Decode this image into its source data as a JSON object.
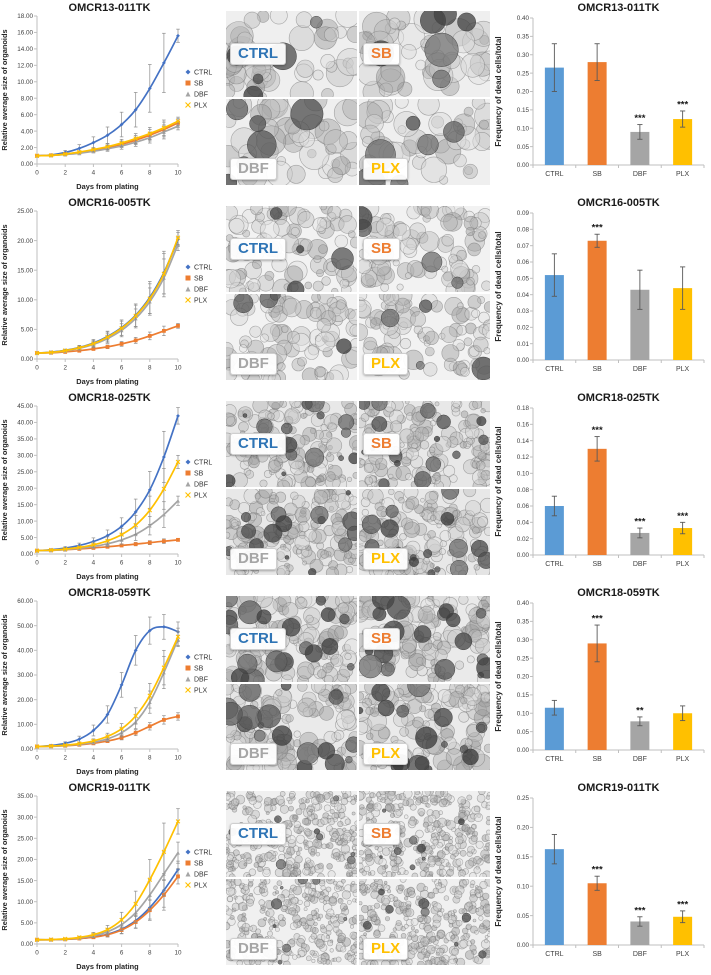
{
  "series_names": [
    "CTRL",
    "SB",
    "DBF",
    "PLX"
  ],
  "line_colors": [
    "#4472C4",
    "#ED7D31",
    "#A5A5A5",
    "#FFC000"
  ],
  "bar_colors": [
    "#5B9BD5",
    "#ED7D31",
    "#A5A5A5",
    "#FFC000"
  ],
  "label_colors": [
    "#2E74B5",
    "#ED7D31",
    "#A6A6A6",
    "#FFC000"
  ],
  "markers": [
    "diamond",
    "square",
    "triangle",
    "x"
  ],
  "chart_data": [
    {
      "sample": "OMCR13-011TK",
      "line": {
        "type": "line",
        "title": "OMCR13-011TK",
        "xlabel": "Days from plating",
        "ylabel": "Relative average size of organoids",
        "xlim": [
          0,
          10
        ],
        "xticks": [
          0,
          2,
          4,
          6,
          8,
          10
        ],
        "ylim": [
          0,
          18
        ],
        "ystep": 2,
        "x": [
          0,
          1,
          2,
          3,
          4,
          5,
          6,
          7,
          8,
          9,
          10
        ],
        "series": [
          {
            "name": "CTRL",
            "values": [
              1,
              1.1,
              1.4,
              1.9,
              2.6,
              3.5,
              4.8,
              6.6,
              9.2,
              12.3,
              15.6
            ],
            "err": [
              0,
              0.1,
              0.25,
              0.45,
              0.7,
              1.0,
              1.5,
              2.1,
              2.9,
              3.6,
              0.8
            ]
          },
          {
            "name": "SB",
            "values": [
              1,
              1.05,
              1.2,
              1.4,
              1.65,
              2.0,
              2.4,
              2.9,
              3.5,
              4.2,
              5.0
            ],
            "err": [
              0,
              0.05,
              0.1,
              0.15,
              0.25,
              0.3,
              0.4,
              0.55,
              0.7,
              0.9,
              0.5
            ]
          },
          {
            "name": "DBF",
            "values": [
              1,
              1.05,
              1.15,
              1.3,
              1.55,
              1.85,
              2.2,
              2.65,
              3.2,
              3.9,
              4.6
            ],
            "err": [
              0,
              0.05,
              0.1,
              0.15,
              0.2,
              0.3,
              0.4,
              0.5,
              0.65,
              0.85,
              0.45
            ]
          },
          {
            "name": "PLX",
            "values": [
              1,
              1.05,
              1.2,
              1.45,
              1.75,
              2.1,
              2.55,
              3.1,
              3.7,
              4.4,
              5.2
            ],
            "err": [
              0,
              0.05,
              0.1,
              0.15,
              0.25,
              0.35,
              0.45,
              0.6,
              0.75,
              0.95,
              0.5
            ]
          }
        ]
      },
      "bar": {
        "type": "bar",
        "title": "OMCR13-011TK",
        "ylabel": "Frequency of dead cells/total",
        "categories": [
          "CTRL",
          "SB",
          "DBF",
          "PLX"
        ],
        "values": [
          0.265,
          0.28,
          0.09,
          0.125
        ],
        "errors": [
          0.065,
          0.05,
          0.02,
          0.022
        ],
        "sig": [
          "",
          "",
          "***",
          "***"
        ],
        "ylim": [
          0,
          0.4
        ],
        "ystep": 0.05
      },
      "micro_labels": [
        "CTRL",
        "SB",
        "DBF",
        "PLX"
      ]
    },
    {
      "sample": "OMCR16-005TK",
      "line": {
        "type": "line",
        "title": "OMCR16-005TK",
        "xlabel": "Days from plating",
        "ylabel": "Relative average size of organoids",
        "xlim": [
          0,
          10
        ],
        "xticks": [
          0,
          2,
          4,
          6,
          8,
          10
        ],
        "ylim": [
          0,
          25
        ],
        "ystep": 5,
        "x": [
          0,
          1,
          2,
          3,
          4,
          5,
          6,
          7,
          8,
          9,
          10
        ],
        "series": [
          {
            "name": "CTRL",
            "values": [
              1,
              1.15,
              1.45,
              1.95,
              2.7,
              3.8,
              5.3,
              7.4,
              10.4,
              14.6,
              20.2
            ],
            "err": [
              0,
              0.1,
              0.2,
              0.35,
              0.6,
              0.9,
              1.3,
              1.9,
              2.7,
              3.6,
              1.2
            ]
          },
          {
            "name": "SB",
            "values": [
              1,
              1.05,
              1.2,
              1.4,
              1.7,
              2.05,
              2.55,
              3.15,
              3.9,
              4.75,
              5.6
            ],
            "err": [
              0,
              0.05,
              0.1,
              0.15,
              0.2,
              0.3,
              0.4,
              0.5,
              0.65,
              0.8,
              0.4
            ]
          },
          {
            "name": "DBF",
            "values": [
              1,
              1.1,
              1.35,
              1.8,
              2.45,
              3.45,
              4.85,
              6.85,
              9.7,
              13.7,
              19.4
            ],
            "err": [
              0,
              0.1,
              0.2,
              0.3,
              0.5,
              0.8,
              1.1,
              1.6,
              2.3,
              3.2,
              1.1
            ]
          },
          {
            "name": "PLX",
            "values": [
              1,
              1.12,
              1.42,
              1.9,
              2.6,
              3.7,
              5.2,
              7.3,
              10.2,
              14.4,
              20.5
            ],
            "err": [
              0,
              0.1,
              0.2,
              0.35,
              0.55,
              0.85,
              1.2,
              1.8,
              2.5,
              3.4,
              1.2
            ]
          }
        ]
      },
      "bar": {
        "type": "bar",
        "title": "OMCR16-005TK",
        "ylabel": "Frequency of dead cells/total",
        "categories": [
          "CTRL",
          "SB",
          "DBF",
          "PLX"
        ],
        "values": [
          0.052,
          0.073,
          0.043,
          0.044
        ],
        "errors": [
          0.013,
          0.004,
          0.012,
          0.013
        ],
        "sig": [
          "",
          "***",
          "",
          ""
        ],
        "ylim": [
          0,
          0.09
        ],
        "ystep": 0.01
      },
      "micro_labels": [
        "CTRL",
        "SB",
        "DBF",
        "PLX"
      ]
    },
    {
      "sample": "OMCR18-025TK",
      "line": {
        "type": "line",
        "title": "OMCR18-025TK",
        "xlabel": "Days from plating",
        "ylabel": "Relative average size of organoids",
        "xlim": [
          0,
          10
        ],
        "xticks": [
          0,
          2,
          4,
          6,
          8,
          10
        ],
        "ylim": [
          0,
          45
        ],
        "ystep": 5,
        "x": [
          0,
          1,
          2,
          3,
          4,
          5,
          6,
          7,
          8,
          9,
          10
        ],
        "series": [
          {
            "name": "CTRL",
            "values": [
              1,
              1.3,
              1.8,
              2.6,
              3.8,
              5.6,
              8.4,
              12.8,
              19.5,
              29.5,
              42.0
            ],
            "err": [
              0,
              0.2,
              0.4,
              0.7,
              1.1,
              1.7,
              2.6,
              3.9,
              5.6,
              7.8,
              2.5
            ]
          },
          {
            "name": "SB",
            "values": [
              1,
              1.1,
              1.3,
              1.55,
              1.85,
              2.2,
              2.6,
              3.0,
              3.45,
              3.9,
              4.3
            ],
            "err": [
              0,
              0.05,
              0.1,
              0.15,
              0.2,
              0.3,
              0.4,
              0.5,
              0.6,
              0.7,
              0.4
            ]
          },
          {
            "name": "DBF",
            "values": [
              1,
              1.1,
              1.35,
              1.75,
              2.3,
              3.1,
              4.3,
              6.0,
              8.6,
              12.0,
              16.2
            ],
            "err": [
              0,
              0.1,
              0.2,
              0.35,
              0.55,
              0.85,
              1.3,
              1.9,
              2.8,
              3.9,
              1.4
            ]
          },
          {
            "name": "PLX",
            "values": [
              1,
              1.2,
              1.5,
              2.0,
              2.8,
              4.0,
              5.9,
              8.8,
              13.3,
              19.8,
              28.0
            ],
            "err": [
              0,
              0.15,
              0.3,
              0.5,
              0.8,
              1.2,
              1.9,
              2.9,
              4.3,
              6.2,
              2.0
            ]
          }
        ]
      },
      "bar": {
        "type": "bar",
        "title": "OMCR18-025TK",
        "ylabel": "Frequency of dead cells/total",
        "categories": [
          "CTRL",
          "SB",
          "DBF",
          "PLX"
        ],
        "values": [
          0.06,
          0.13,
          0.027,
          0.033
        ],
        "errors": [
          0.012,
          0.015,
          0.006,
          0.007
        ],
        "sig": [
          "",
          "***",
          "***",
          "***"
        ],
        "ylim": [
          0,
          0.18
        ],
        "ystep": 0.02
      },
      "micro_labels": [
        "CTRL",
        "SB",
        "DBF",
        "PLX"
      ]
    },
    {
      "sample": "OMCR18-059TK",
      "line": {
        "type": "line",
        "title": "OMCR18-059TK",
        "xlabel": "Days from plating",
        "ylabel": "Relative average size of organoids",
        "xlim": [
          0,
          10
        ],
        "xticks": [
          0,
          2,
          4,
          6,
          8,
          10
        ],
        "ylim": [
          0,
          60
        ],
        "ystep": 10,
        "x": [
          0,
          1,
          2,
          3,
          4,
          5,
          6,
          7,
          8,
          9,
          10
        ],
        "series": [
          {
            "name": "CTRL",
            "values": [
              1,
              1.4,
              2.3,
              4.0,
              7.5,
              14.0,
              26.0,
              40.0,
              48.0,
              49.5,
              47.5
            ],
            "err": [
              0,
              0.3,
              0.6,
              1.2,
              2.2,
              3.5,
              5.0,
              6.0,
              5.5,
              5.0,
              4.0
            ]
          },
          {
            "name": "SB",
            "values": [
              1,
              1.1,
              1.3,
              1.7,
              2.3,
              3.2,
              4.6,
              6.6,
              9.2,
              11.8,
              13.2
            ],
            "err": [
              0,
              0.1,
              0.15,
              0.25,
              0.4,
              0.6,
              0.9,
              1.2,
              1.5,
              1.7,
              1.5
            ]
          },
          {
            "name": "DBF",
            "values": [
              1,
              1.1,
              1.4,
              1.9,
              2.7,
              4.1,
              6.6,
              11.0,
              19.0,
              31.0,
              44.5
            ],
            "err": [
              0,
              0.1,
              0.2,
              0.4,
              0.6,
              1.0,
              1.7,
              2.8,
              4.5,
              6.5,
              3.0
            ]
          },
          {
            "name": "PLX",
            "values": [
              1,
              1.2,
              1.55,
              2.2,
              3.3,
              5.1,
              8.2,
              13.4,
              21.6,
              33.0,
              45.5
            ],
            "err": [
              0,
              0.15,
              0.3,
              0.5,
              0.8,
              1.3,
              2.1,
              3.3,
              5.0,
              7.0,
              3.5
            ]
          }
        ]
      },
      "bar": {
        "type": "bar",
        "title": "OMCR18-059TK",
        "ylabel": "Frequency of dead cells/total",
        "categories": [
          "CTRL",
          "SB",
          "DBF",
          "PLX"
        ],
        "values": [
          0.115,
          0.29,
          0.078,
          0.1
        ],
        "errors": [
          0.02,
          0.05,
          0.012,
          0.02
        ],
        "sig": [
          "",
          "***",
          "**",
          ""
        ],
        "ylim": [
          0,
          0.4
        ],
        "ystep": 0.05
      },
      "micro_labels": [
        "CTRL",
        "SB",
        "DBF",
        "PLX"
      ]
    },
    {
      "sample": "OMCR19-011TK",
      "line": {
        "type": "line",
        "title": "OMCR19-011TK",
        "xlabel": "Days from plating",
        "ylabel": "Relative average size of organoids",
        "xlim": [
          0,
          10
        ],
        "xticks": [
          0,
          2,
          4,
          6,
          8,
          10
        ],
        "ylim": [
          0,
          35
        ],
        "ystep": 5,
        "x": [
          0,
          1,
          2,
          3,
          4,
          5,
          6,
          7,
          8,
          9,
          10
        ],
        "series": [
          {
            "name": "CTRL",
            "values": [
              1,
              1.0,
              1.1,
              1.3,
              1.65,
              2.3,
              3.5,
              5.5,
              8.6,
              12.7,
              17.6
            ],
            "err": [
              0,
              0.05,
              0.1,
              0.2,
              0.35,
              0.6,
              1.0,
              1.7,
              2.7,
              4.0,
              2.0
            ]
          },
          {
            "name": "SB",
            "values": [
              1,
              1.0,
              1.1,
              1.3,
              1.6,
              2.2,
              3.3,
              5.2,
              8.0,
              11.6,
              16.0
            ],
            "err": [
              0,
              0.05,
              0.1,
              0.2,
              0.3,
              0.55,
              0.9,
              1.5,
              2.4,
              3.6,
              1.8
            ]
          },
          {
            "name": "DBF",
            "values": [
              1,
              1.05,
              1.15,
              1.45,
              1.95,
              2.9,
              4.6,
              7.4,
              11.6,
              16.6,
              21.6
            ],
            "err": [
              0,
              0.05,
              0.1,
              0.25,
              0.45,
              0.8,
              1.4,
              2.3,
              3.6,
              5.2,
              2.5
            ]
          },
          {
            "name": "PLX",
            "values": [
              1,
              1.05,
              1.2,
              1.55,
              2.2,
              3.4,
              5.7,
              9.5,
              15.2,
              21.8,
              29.0
            ],
            "err": [
              0,
              0.05,
              0.15,
              0.3,
              0.55,
              1.0,
              1.8,
              3.0,
              4.8,
              6.8,
              3.0
            ]
          }
        ]
      },
      "bar": {
        "type": "bar",
        "title": "OMCR19-011TK",
        "ylabel": "Frequency of dead cells/total",
        "categories": [
          "CTRL",
          "SB",
          "DBF",
          "PLX"
        ],
        "values": [
          0.163,
          0.105,
          0.04,
          0.048
        ],
        "errors": [
          0.025,
          0.012,
          0.008,
          0.01
        ],
        "sig": [
          "",
          "***",
          "***",
          "***"
        ],
        "ylim": [
          0,
          0.25
        ],
        "ystep": 0.05
      },
      "micro_labels": [
        "CTRL",
        "SB",
        "DBF",
        "PLX"
      ]
    }
  ]
}
